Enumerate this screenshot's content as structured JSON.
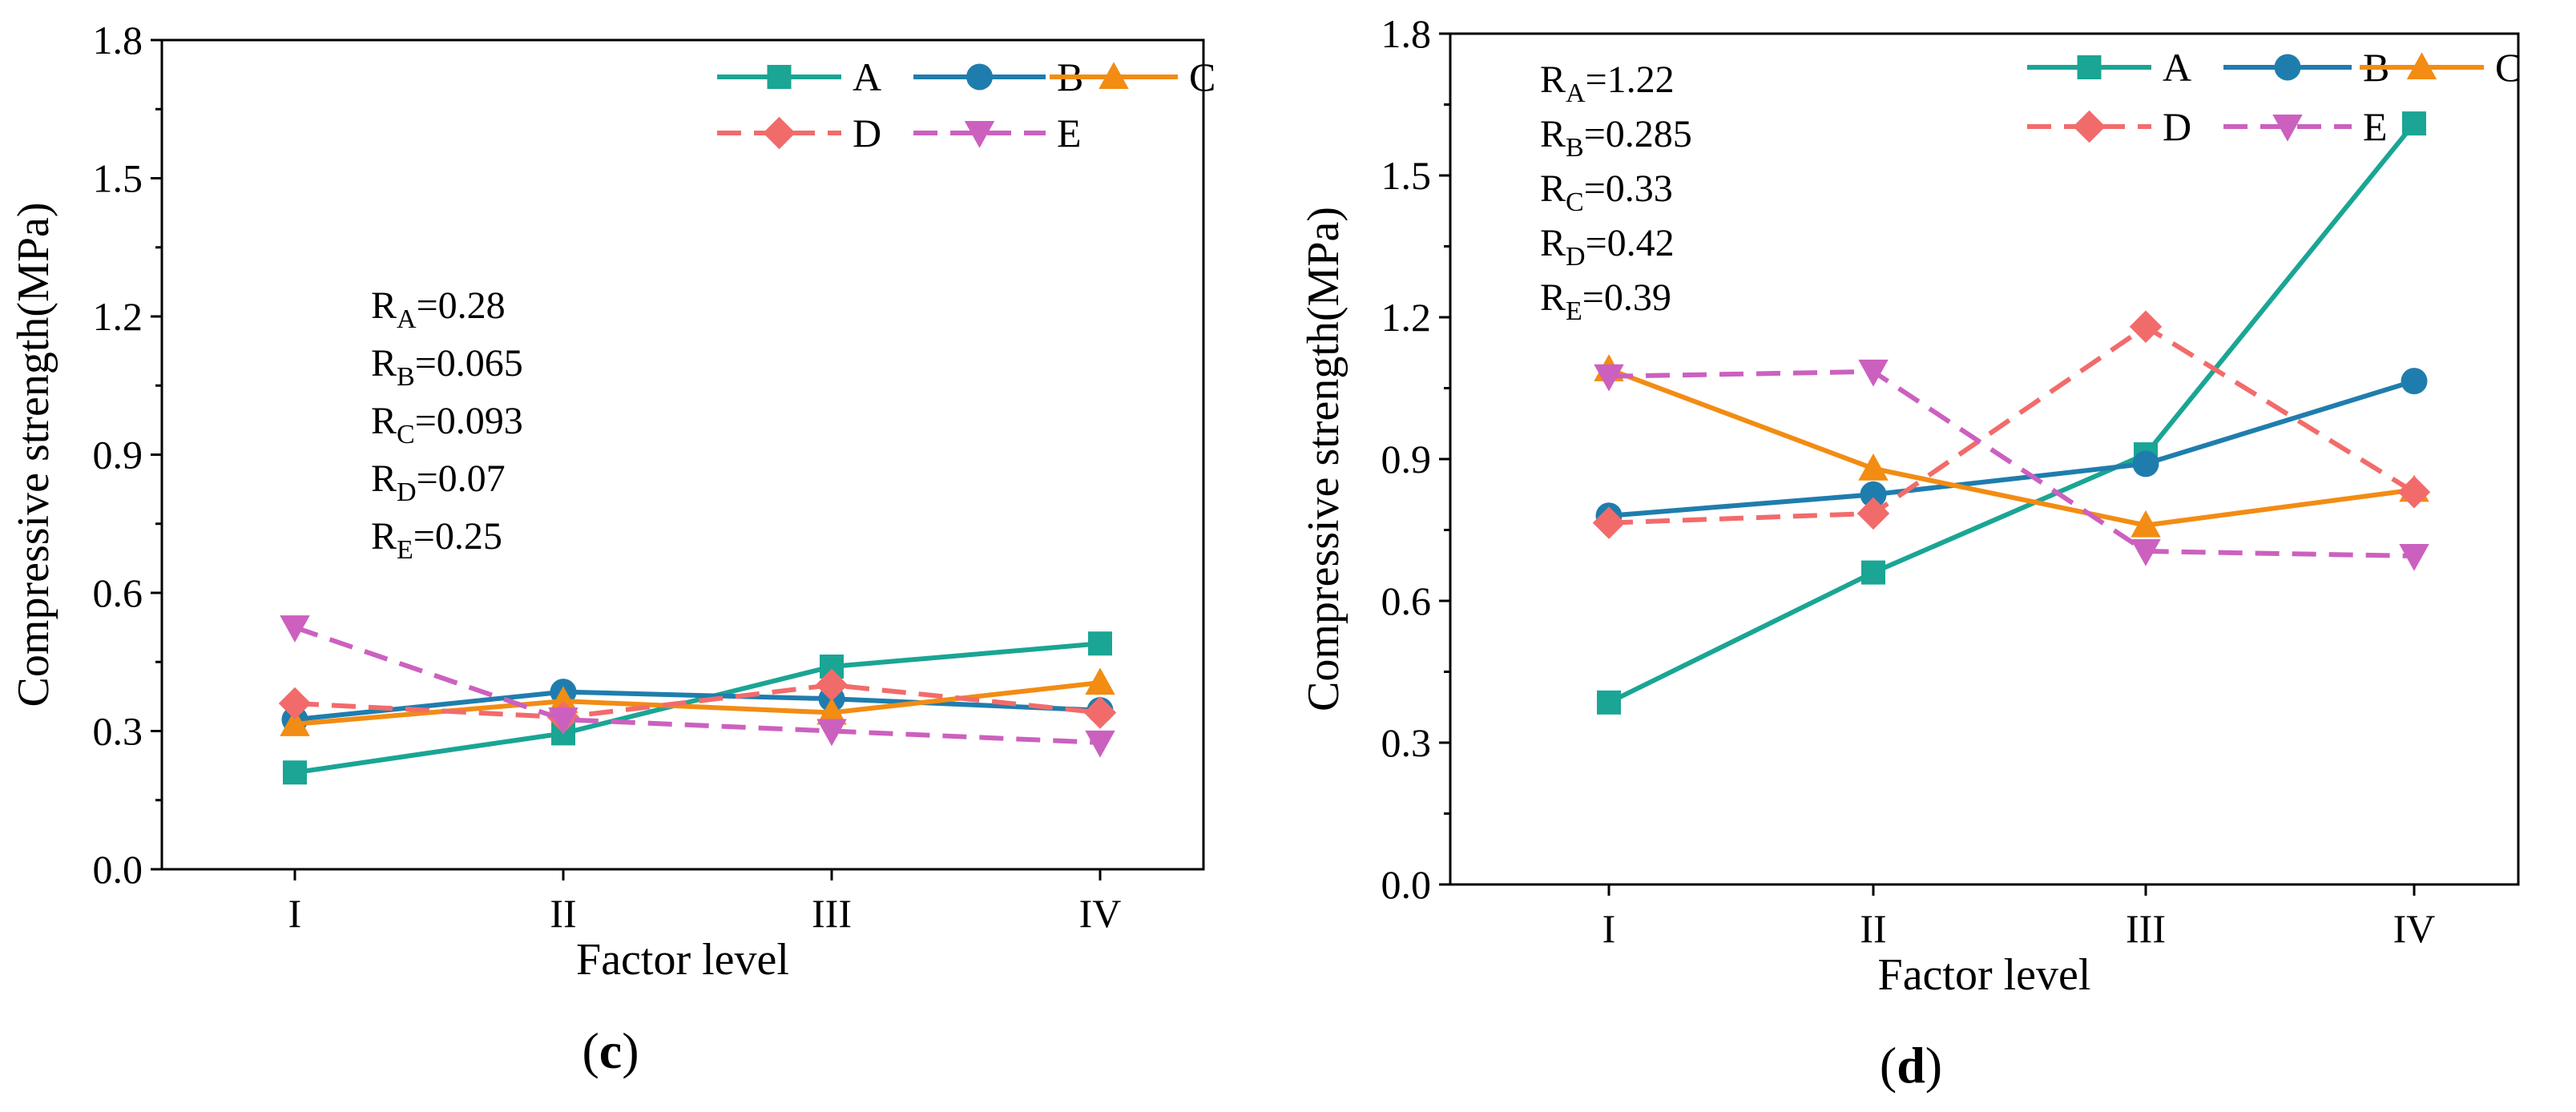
{
  "chart_data": [
    {
      "type": "line",
      "panel_label": "c",
      "xlabel": "Factor level",
      "ylabel": "Compressive strength(MPa)",
      "categories": [
        "I",
        "II",
        "III",
        "IV"
      ],
      "ylim": [
        0.0,
        1.8
      ],
      "yticks": [
        "0.0",
        "0.3",
        "0.6",
        "0.9",
        "1.2",
        "1.5",
        "1.8"
      ],
      "legend_position": "top-right",
      "series": [
        {
          "name": "A",
          "values": [
            0.21,
            0.295,
            0.44,
            0.49
          ],
          "color": "#1aa594",
          "marker": "square",
          "dash": "solid"
        },
        {
          "name": "B",
          "values": [
            0.325,
            0.385,
            0.37,
            0.345
          ],
          "color": "#1f7dad",
          "marker": "circle",
          "dash": "solid"
        },
        {
          "name": "C",
          "values": [
            0.315,
            0.365,
            0.34,
            0.405
          ],
          "color": "#f28c13",
          "marker": "triangle-up",
          "dash": "solid"
        },
        {
          "name": "D",
          "values": [
            0.36,
            0.33,
            0.4,
            0.34
          ],
          "color": "#f26b6b",
          "marker": "diamond",
          "dash": "dashed"
        },
        {
          "name": "E",
          "values": [
            0.525,
            0.325,
            0.3,
            0.275
          ],
          "color": "#cc60bf",
          "marker": "triangle-down",
          "dash": "dashed"
        }
      ],
      "annotations": [
        {
          "main": "R",
          "sub": "A",
          "value": "=0.28"
        },
        {
          "main": "R",
          "sub": "B",
          "value": "=0.065"
        },
        {
          "main": "R",
          "sub": "C",
          "value": "=0.093"
        },
        {
          "main": "R",
          "sub": "D",
          "value": "=0.07"
        },
        {
          "main": "R",
          "sub": "E",
          "value": "=0.25"
        }
      ]
    },
    {
      "type": "line",
      "panel_label": "d",
      "xlabel": "Factor level",
      "ylabel": "Compressive strength(MPa)",
      "categories": [
        "I",
        "II",
        "III",
        "IV"
      ],
      "ylim": [
        0.0,
        1.8
      ],
      "yticks": [
        "0.0",
        "0.3",
        "0.6",
        "0.9",
        "1.2",
        "1.5",
        "1.8"
      ],
      "legend_position": "top-right",
      "series": [
        {
          "name": "A",
          "values": [
            0.385,
            0.66,
            0.91,
            1.61
          ],
          "color": "#1aa594",
          "marker": "square",
          "dash": "solid"
        },
        {
          "name": "B",
          "values": [
            0.78,
            0.825,
            0.89,
            1.065
          ],
          "color": "#1f7dad",
          "marker": "circle",
          "dash": "solid"
        },
        {
          "name": "C",
          "values": [
            1.09,
            0.88,
            0.76,
            0.835
          ],
          "color": "#f28c13",
          "marker": "triangle-up",
          "dash": "solid"
        },
        {
          "name": "D",
          "values": [
            0.765,
            0.785,
            1.18,
            0.83
          ],
          "color": "#f26b6b",
          "marker": "diamond",
          "dash": "dashed"
        },
        {
          "name": "E",
          "values": [
            1.075,
            1.085,
            0.705,
            0.695
          ],
          "color": "#cc60bf",
          "marker": "triangle-down",
          "dash": "dashed"
        }
      ],
      "annotations": [
        {
          "main": "R",
          "sub": "A",
          "value": "=1.22"
        },
        {
          "main": "R",
          "sub": "B",
          "value": "=0.285"
        },
        {
          "main": "R",
          "sub": "C",
          "value": "=0.33"
        },
        {
          "main": "R",
          "sub": "D",
          "value": "=0.42"
        },
        {
          "main": "R",
          "sub": "E",
          "value": "=0.39"
        }
      ]
    }
  ]
}
